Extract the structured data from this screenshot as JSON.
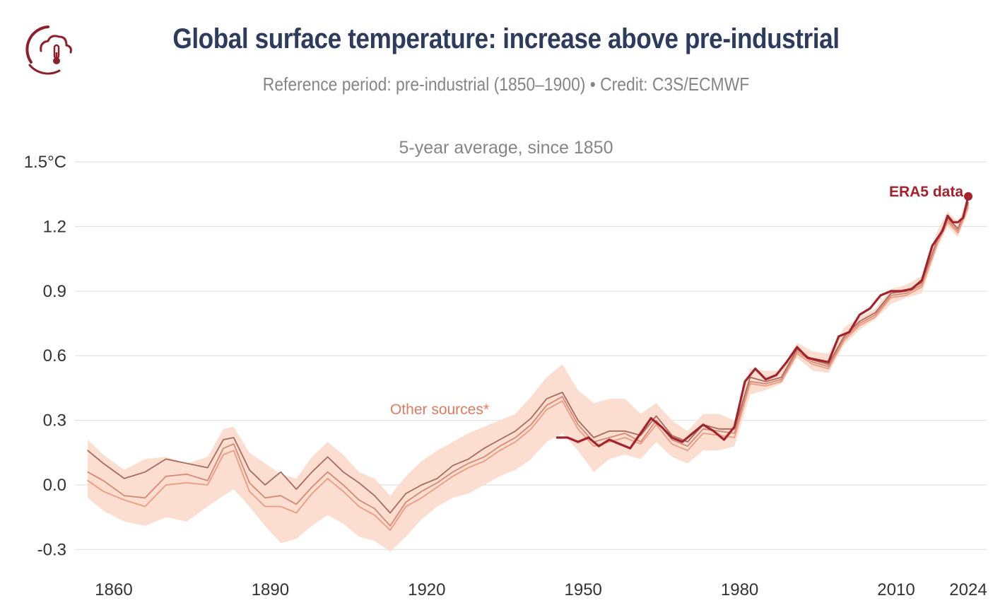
{
  "header": {
    "title": "Global surface temperature: increase above pre-industrial",
    "subtitle": "Reference period: pre-industrial (1850–1900) • Credit: C3S/ECMWF",
    "logo_icon": "climate-thermometer-icon"
  },
  "colors": {
    "title": "#2d3b5c",
    "era5": "#a3222c",
    "other_sources": "#e07a5f",
    "band": "#fbdccd",
    "grid": "#e2e2e2"
  },
  "chart_data": {
    "type": "line",
    "title": "Global surface temperature: increase above pre-industrial",
    "subtitle": "5-year average, since 1850",
    "ylabel": "",
    "xlabel": "",
    "ylim": [
      -0.35,
      1.5
    ],
    "xlim": [
      1855,
      2024
    ],
    "grid": true,
    "y_ticks": [
      {
        "value": 1.5,
        "label": "1.5°C"
      },
      {
        "value": 1.2,
        "label": "1.2"
      },
      {
        "value": 0.9,
        "label": "0.9"
      },
      {
        "value": 0.6,
        "label": "0.6"
      },
      {
        "value": 0.3,
        "label": "0.3"
      },
      {
        "value": 0.0,
        "label": "0.0"
      },
      {
        "value": -0.3,
        "label": "-0.3"
      }
    ],
    "x_ticks": [
      {
        "value": 1860,
        "label": "1860"
      },
      {
        "value": 1890,
        "label": "1890"
      },
      {
        "value": 1920,
        "label": "1920"
      },
      {
        "value": 1950,
        "label": "1950"
      },
      {
        "value": 1980,
        "label": "1980"
      },
      {
        "value": 2010,
        "label": "2010"
      },
      {
        "value": 2024,
        "label": "2024"
      }
    ],
    "annotations": {
      "era5": "ERA5 data",
      "other": "Other sources*"
    },
    "band": {
      "x": [
        1855,
        1858,
        1862,
        1866,
        1870,
        1874,
        1878,
        1881,
        1883,
        1886,
        1889,
        1892,
        1895,
        1898,
        1901,
        1904,
        1907,
        1910,
        1913,
        1916,
        1919,
        1922,
        1925,
        1928,
        1931,
        1934,
        1937,
        1940,
        1943,
        1946,
        1949,
        1952,
        1955,
        1958,
        1961,
        1964,
        1967,
        1970,
        1973,
        1976,
        1979,
        1982,
        1985,
        1988,
        1991,
        1994,
        1997,
        2000,
        2003,
        2006,
        2009,
        2012,
        2015,
        2018,
        2020,
        2022,
        2024
      ],
      "lower": [
        -0.06,
        -0.12,
        -0.17,
        -0.19,
        -0.15,
        -0.17,
        -0.1,
        -0.05,
        -0.02,
        -0.1,
        -0.19,
        -0.27,
        -0.25,
        -0.19,
        -0.14,
        -0.18,
        -0.24,
        -0.26,
        -0.31,
        -0.24,
        -0.16,
        -0.1,
        -0.06,
        -0.04,
        0.0,
        0.04,
        0.07,
        0.12,
        0.2,
        0.24,
        0.16,
        0.06,
        0.12,
        0.14,
        0.12,
        0.2,
        0.13,
        0.1,
        0.16,
        0.16,
        0.18,
        0.42,
        0.44,
        0.47,
        0.59,
        0.53,
        0.52,
        0.65,
        0.72,
        0.77,
        0.84,
        0.87,
        0.89,
        1.1,
        1.2,
        1.15,
        1.27
      ],
      "upper": [
        0.21,
        0.14,
        0.07,
        0.12,
        0.13,
        0.1,
        0.13,
        0.26,
        0.27,
        0.15,
        0.1,
        0.05,
        0.03,
        0.13,
        0.2,
        0.14,
        0.06,
        0.03,
        -0.05,
        0.04,
        0.11,
        0.16,
        0.2,
        0.24,
        0.27,
        0.3,
        0.33,
        0.41,
        0.5,
        0.56,
        0.44,
        0.38,
        0.4,
        0.4,
        0.33,
        0.38,
        0.3,
        0.25,
        0.33,
        0.33,
        0.3,
        0.54,
        0.53,
        0.53,
        0.66,
        0.62,
        0.61,
        0.73,
        0.78,
        0.82,
        0.91,
        0.93,
        0.97,
        1.18,
        1.27,
        1.22,
        1.33
      ]
    },
    "series": [
      {
        "name": "Other sources*",
        "color": "#a86b5e",
        "x": [
          1855,
          1858,
          1862,
          1866,
          1870,
          1874,
          1878,
          1881,
          1883,
          1886,
          1889,
          1892,
          1895,
          1898,
          1901,
          1904,
          1907,
          1910,
          1913,
          1916,
          1919,
          1922,
          1925,
          1928,
          1931,
          1934,
          1937,
          1940,
          1943,
          1946,
          1949,
          1952,
          1955,
          1958,
          1961,
          1964,
          1967,
          1970,
          1973,
          1976,
          1979,
          1982,
          1985,
          1988,
          1991,
          1994,
          1997,
          2000,
          2003,
          2006,
          2009,
          2012,
          2015,
          2018,
          2020,
          2022,
          2024
        ],
        "values": [
          0.16,
          0.1,
          0.03,
          0.06,
          0.12,
          0.1,
          0.08,
          0.21,
          0.22,
          0.07,
          0.0,
          0.06,
          -0.02,
          0.06,
          0.13,
          0.06,
          0.01,
          -0.05,
          -0.13,
          -0.04,
          0.0,
          0.03,
          0.09,
          0.12,
          0.17,
          0.21,
          0.25,
          0.31,
          0.4,
          0.43,
          0.3,
          0.22,
          0.25,
          0.25,
          0.23,
          0.32,
          0.23,
          0.2,
          0.28,
          0.26,
          0.26,
          0.5,
          0.48,
          0.5,
          0.63,
          0.58,
          0.56,
          0.69,
          0.76,
          0.8,
          0.89,
          0.9,
          0.94,
          1.14,
          1.24,
          1.19,
          1.31
        ]
      },
      {
        "name": "",
        "color": "#d48a75",
        "x": [
          1855,
          1858,
          1862,
          1866,
          1870,
          1874,
          1878,
          1881,
          1883,
          1886,
          1889,
          1892,
          1895,
          1898,
          1901,
          1904,
          1907,
          1910,
          1913,
          1916,
          1919,
          1922,
          1925,
          1928,
          1931,
          1934,
          1937,
          1940,
          1943,
          1946,
          1949,
          1952,
          1955,
          1958,
          1961,
          1964,
          1967,
          1970,
          1973,
          1976,
          1979,
          1982,
          1985,
          1988,
          1991,
          1994,
          1997,
          2000,
          2003,
          2006,
          2009,
          2012,
          2015,
          2018,
          2020,
          2022,
          2024
        ],
        "values": [
          0.06,
          0.02,
          -0.05,
          -0.06,
          0.04,
          0.05,
          0.02,
          0.17,
          0.19,
          0.01,
          -0.06,
          -0.05,
          -0.09,
          -0.01,
          0.06,
          0.0,
          -0.07,
          -0.11,
          -0.19,
          -0.08,
          -0.03,
          0.01,
          0.06,
          0.1,
          0.13,
          0.18,
          0.22,
          0.28,
          0.37,
          0.41,
          0.28,
          0.2,
          0.22,
          0.24,
          0.2,
          0.3,
          0.21,
          0.18,
          0.26,
          0.25,
          0.24,
          0.48,
          0.47,
          0.49,
          0.62,
          0.57,
          0.55,
          0.68,
          0.75,
          0.79,
          0.88,
          0.89,
          0.93,
          1.13,
          1.23,
          1.18,
          1.3
        ]
      },
      {
        "name": "",
        "color": "#ee9a80",
        "x": [
          1855,
          1858,
          1862,
          1866,
          1870,
          1874,
          1878,
          1881,
          1883,
          1886,
          1889,
          1892,
          1895,
          1898,
          1901,
          1904,
          1907,
          1910,
          1913,
          1916,
          1919,
          1922,
          1925,
          1928,
          1931,
          1934,
          1937,
          1940,
          1943,
          1946,
          1949,
          1952,
          1955,
          1958,
          1961,
          1964,
          1967,
          1970,
          1973,
          1976,
          1979,
          1982,
          1985,
          1988,
          1991,
          1994,
          1997,
          2000,
          2003,
          2006,
          2009,
          2012,
          2015,
          2018,
          2020,
          2022,
          2024
        ],
        "values": [
          0.02,
          -0.03,
          -0.07,
          -0.1,
          0.0,
          0.01,
          0.0,
          0.14,
          0.16,
          -0.03,
          -0.1,
          -0.1,
          -0.13,
          -0.04,
          0.03,
          -0.03,
          -0.1,
          -0.14,
          -0.21,
          -0.1,
          -0.06,
          -0.01,
          0.04,
          0.08,
          0.11,
          0.16,
          0.2,
          0.26,
          0.35,
          0.39,
          0.26,
          0.18,
          0.2,
          0.22,
          0.19,
          0.28,
          0.19,
          0.16,
          0.24,
          0.23,
          0.22,
          0.47,
          0.46,
          0.48,
          0.61,
          0.56,
          0.54,
          0.67,
          0.74,
          0.78,
          0.87,
          0.88,
          0.92,
          1.12,
          1.22,
          1.17,
          1.29
        ]
      },
      {
        "name": "ERA5 data",
        "color": "#a3222c",
        "x": [
          1945,
          1947,
          1949,
          1951,
          1953,
          1955,
          1957,
          1959,
          1961,
          1963,
          1965,
          1967,
          1969,
          1971,
          1973,
          1975,
          1977,
          1979,
          1981,
          1983,
          1985,
          1987,
          1989,
          1991,
          1993,
          1995,
          1997,
          1999,
          2001,
          2003,
          2005,
          2007,
          2009,
          2011,
          2013,
          2015,
          2017,
          2019,
          2020,
          2021,
          2022,
          2023,
          2024
        ],
        "values": [
          0.22,
          0.22,
          0.2,
          0.22,
          0.18,
          0.21,
          0.19,
          0.17,
          0.24,
          0.31,
          0.27,
          0.22,
          0.2,
          0.24,
          0.28,
          0.25,
          0.21,
          0.27,
          0.48,
          0.54,
          0.49,
          0.51,
          0.57,
          0.64,
          0.59,
          0.58,
          0.57,
          0.69,
          0.71,
          0.79,
          0.82,
          0.88,
          0.9,
          0.9,
          0.91,
          0.95,
          1.11,
          1.18,
          1.25,
          1.22,
          1.22,
          1.24,
          1.34
        ]
      }
    ]
  }
}
